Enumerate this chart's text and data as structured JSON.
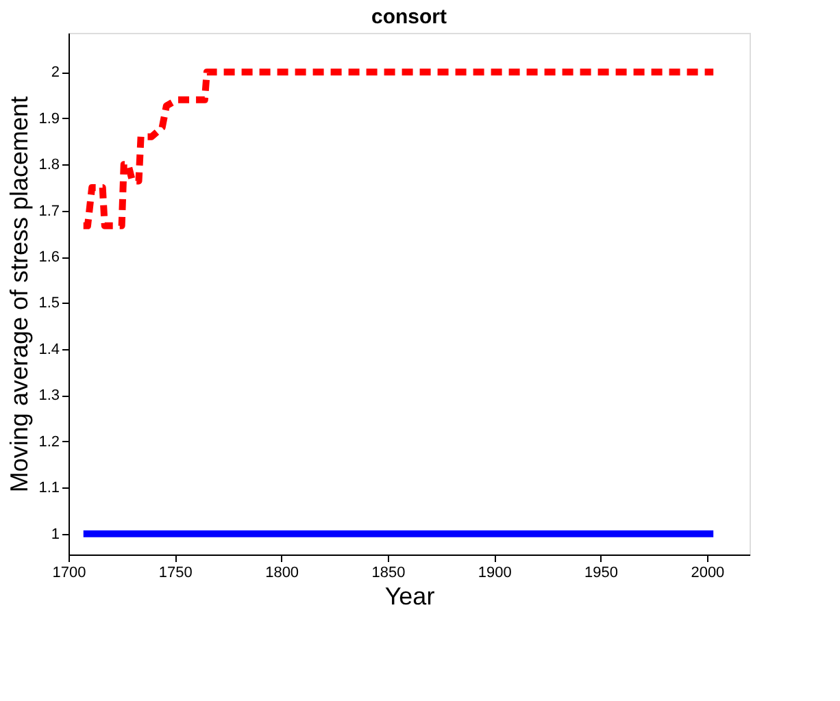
{
  "chart_data": {
    "type": "line",
    "title": "consort",
    "xlabel": "Year",
    "ylabel": "Moving average of stress placement",
    "xlim": [
      1700,
      2020
    ],
    "xticks": [
      1700,
      1750,
      1800,
      1850,
      1900,
      1950,
      2000
    ],
    "ylim": [
      0.955,
      2.085
    ],
    "yticks": [
      1,
      1.1,
      1.2,
      1.3,
      1.4,
      1.5,
      1.6,
      1.7,
      1.8,
      1.9,
      2
    ],
    "grid": false,
    "series": [
      {
        "color": "#0000ff",
        "line_style": "solid",
        "x": [
          1707,
          2003
        ],
        "values": [
          1,
          1
        ]
      },
      {
        "color": "#ff0000",
        "line_style": "dashed",
        "x": [
          1707,
          1709,
          1711,
          1716,
          1717,
          1725,
          1726,
          1728,
          1730,
          1733,
          1734,
          1739,
          1744,
          1746,
          1751,
          1757,
          1764,
          1765,
          2003
        ],
        "values": [
          1.667,
          1.667,
          1.75,
          1.75,
          1.667,
          1.667,
          1.8,
          1.8,
          1.764,
          1.764,
          1.86,
          1.86,
          1.88,
          1.927,
          1.94,
          1.94,
          1.94,
          2,
          2
        ]
      }
    ]
  }
}
